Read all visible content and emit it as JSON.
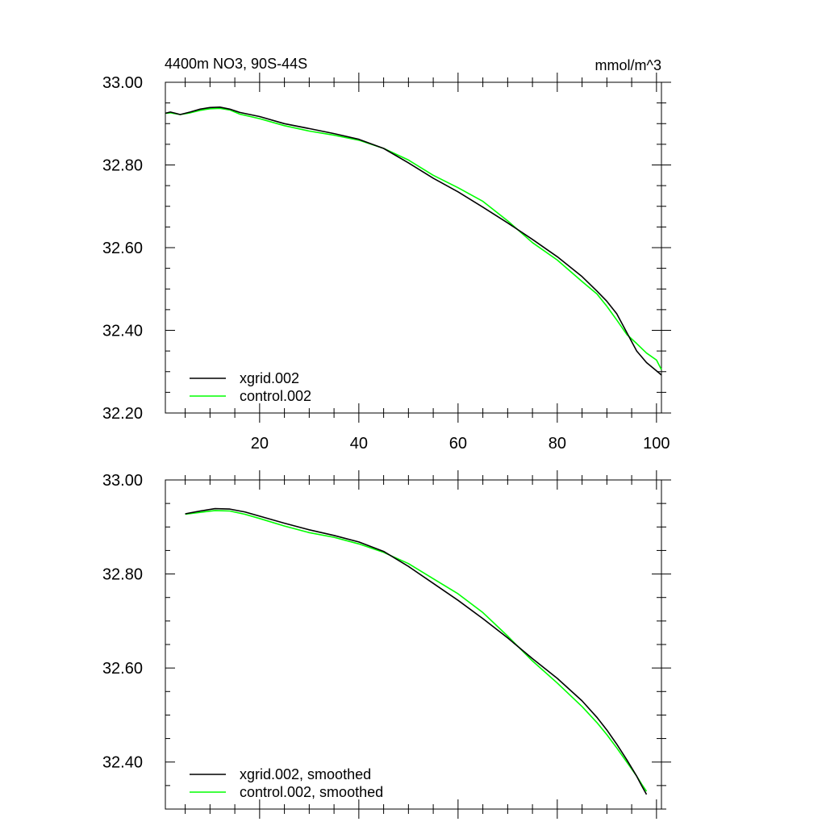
{
  "figure": {
    "title_left": "4400m NO3, 90S-44S",
    "title_right": "mmol/m^3"
  },
  "chart_data": [
    {
      "type": "line",
      "title": "4400m NO3, 90S-44S",
      "units": "mmol/m^3",
      "xlabel": "",
      "ylabel": "",
      "xlim": [
        1,
        101
      ],
      "ylim": [
        32.2,
        33.0
      ],
      "xticks": [
        20,
        40,
        60,
        80,
        100
      ],
      "xtick_labels": [
        "20",
        "40",
        "60",
        "80",
        "100"
      ],
      "yticks": [
        32.2,
        32.4,
        32.6,
        32.8,
        33.0
      ],
      "ytick_labels": [
        "32.20",
        "32.40",
        "32.60",
        "32.80",
        "33.00"
      ],
      "grid": false,
      "legend_position": "bottom-left",
      "series": [
        {
          "name": "xgrid.002",
          "color": "#000000",
          "x": [
            1,
            2,
            3,
            4,
            6,
            8,
            10,
            12,
            14,
            16,
            20,
            25,
            30,
            35,
            40,
            45,
            50,
            55,
            60,
            65,
            70,
            75,
            80,
            85,
            88,
            90,
            92,
            94,
            96,
            98,
            100,
            101
          ],
          "y": [
            32.925,
            32.928,
            32.925,
            32.922,
            32.928,
            32.935,
            32.939,
            32.94,
            32.935,
            32.927,
            32.917,
            32.9,
            32.888,
            32.876,
            32.862,
            32.84,
            32.805,
            32.768,
            32.735,
            32.698,
            32.66,
            32.62,
            32.578,
            32.53,
            32.495,
            32.47,
            32.44,
            32.395,
            32.35,
            32.322,
            32.302,
            32.292
          ]
        },
        {
          "name": "control.002",
          "color": "#00ff00",
          "x": [
            1,
            2,
            3,
            4,
            6,
            8,
            10,
            12,
            14,
            16,
            20,
            25,
            30,
            35,
            40,
            45,
            50,
            55,
            60,
            65,
            70,
            75,
            80,
            85,
            88,
            90,
            92,
            94,
            96,
            98,
            100,
            101
          ],
          "y": [
            32.925,
            32.926,
            32.924,
            32.922,
            32.926,
            32.932,
            32.936,
            32.937,
            32.933,
            32.923,
            32.912,
            32.895,
            32.882,
            32.872,
            32.86,
            32.84,
            32.812,
            32.775,
            32.745,
            32.712,
            32.665,
            32.612,
            32.57,
            32.518,
            32.488,
            32.458,
            32.425,
            32.39,
            32.368,
            32.345,
            32.328,
            32.305
          ]
        }
      ]
    },
    {
      "type": "line",
      "title": "",
      "units": "",
      "xlabel": "",
      "ylabel": "",
      "xlim": [
        1,
        101
      ],
      "ylim": [
        32.3,
        33.0
      ],
      "xticks": [
        20,
        40,
        60,
        80,
        100
      ],
      "xtick_labels": [],
      "yticks": [
        32.4,
        32.6,
        32.8,
        33.0
      ],
      "ytick_labels": [
        "32.40",
        "32.60",
        "32.80",
        "33.00"
      ],
      "grid": false,
      "legend_position": "bottom-left",
      "series": [
        {
          "name": "xgrid.002, smoothed",
          "color": "#000000",
          "x": [
            5,
            8,
            11,
            14,
            17,
            20,
            25,
            30,
            35,
            40,
            45,
            50,
            55,
            60,
            65,
            70,
            75,
            80,
            85,
            88,
            90,
            92,
            94,
            96,
            97,
            98
          ],
          "y": [
            32.928,
            32.934,
            32.939,
            32.938,
            32.932,
            32.923,
            32.908,
            32.894,
            32.882,
            32.868,
            32.848,
            32.816,
            32.78,
            32.744,
            32.705,
            32.664,
            32.62,
            32.578,
            32.53,
            32.495,
            32.468,
            32.438,
            32.405,
            32.37,
            32.35,
            32.331
          ]
        },
        {
          "name": "control.002, smoothed",
          "color": "#00ff00",
          "x": [
            5,
            8,
            11,
            14,
            17,
            20,
            25,
            30,
            35,
            40,
            45,
            50,
            55,
            60,
            65,
            70,
            75,
            80,
            85,
            88,
            90,
            92,
            94,
            96,
            97,
            98
          ],
          "y": [
            32.927,
            32.931,
            32.935,
            32.934,
            32.927,
            32.918,
            32.902,
            32.888,
            32.878,
            32.864,
            32.846,
            32.822,
            32.79,
            32.758,
            32.718,
            32.668,
            32.615,
            32.568,
            32.518,
            32.484,
            32.458,
            32.43,
            32.4,
            32.37,
            32.353,
            32.338
          ]
        }
      ]
    }
  ]
}
